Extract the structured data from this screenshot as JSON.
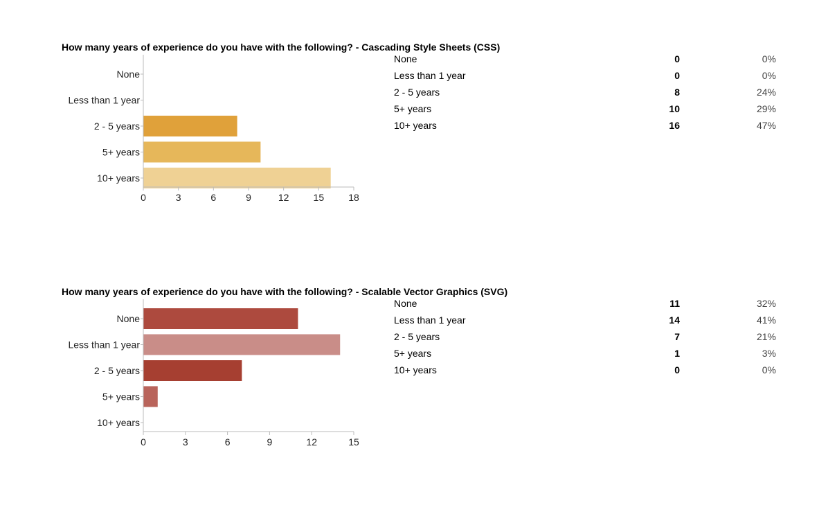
{
  "chart_data": [
    {
      "type": "bar",
      "orientation": "horizontal",
      "title": "How many years of experience do you have with the following? - Cascading Style Sheets (CSS)",
      "categories": [
        "None",
        "Less than 1 year",
        "2 - 5 years",
        "5+ years",
        "10+ years"
      ],
      "values": [
        0,
        0,
        8,
        10,
        16
      ],
      "percents": [
        "0%",
        "0%",
        "24%",
        "29%",
        "47%"
      ],
      "xlim": [
        0,
        18
      ],
      "xticks": [
        "0",
        "3",
        "6",
        "9",
        "12",
        "15",
        "18"
      ],
      "colors": [
        "#e09d2e",
        "#e09d2e",
        "#e0a13a",
        "#e6b75a",
        "#efd194"
      ],
      "grid": false
    },
    {
      "type": "bar",
      "orientation": "horizontal",
      "title": "How many years of experience do you have with the following? - Scalable Vector Graphics (SVG)",
      "categories": [
        "None",
        "Less than 1 year",
        "2 - 5 years",
        "5+ years",
        "10+ years"
      ],
      "values": [
        11,
        14,
        7,
        1,
        0
      ],
      "percents": [
        "32%",
        "41%",
        "21%",
        "3%",
        "0%"
      ],
      "xlim": [
        0,
        15
      ],
      "xticks": [
        "0",
        "3",
        "6",
        "9",
        "12",
        "15"
      ],
      "colors": [
        "#ad4a3e",
        "#c98d88",
        "#a63f31",
        "#b9645b",
        "#b9645b"
      ],
      "grid": false
    }
  ]
}
